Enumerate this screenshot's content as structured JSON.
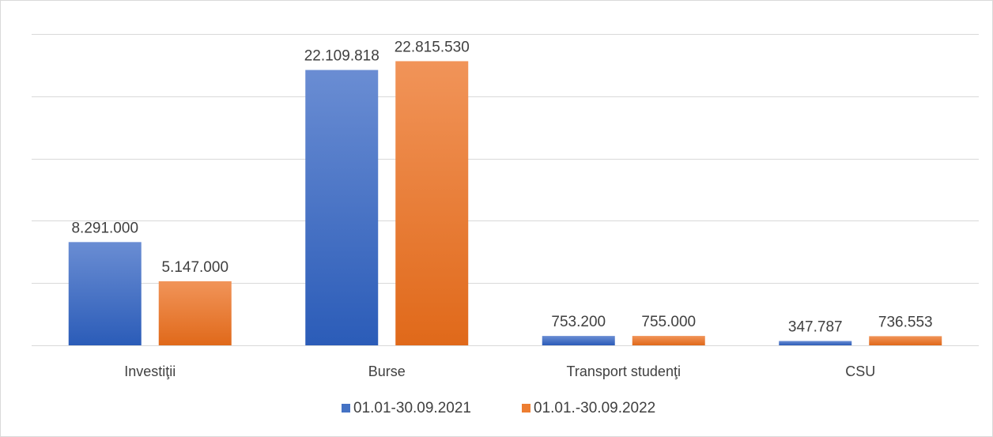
{
  "chart_data": {
    "type": "bar",
    "categories": [
      "Investiţii",
      "Burse",
      "Transport studenţi",
      "CSU"
    ],
    "series": [
      {
        "name": "01.01-30.09.2021",
        "values": [
          8291000,
          22109818,
          753200,
          347787
        ],
        "labels": [
          "8.291.000",
          "22.109.818",
          "753.200",
          "347.787"
        ],
        "color": "#4472c4"
      },
      {
        "name": "01.01.-30.09.2022",
        "values": [
          5147000,
          22815530,
          755000,
          736553
        ],
        "labels": [
          "5.147.000",
          "22.815.530",
          "755.000",
          "736.553"
        ],
        "color": "#ed7d31"
      }
    ],
    "ylim": [
      0,
      25000000
    ],
    "grid": true,
    "legend": "bottom",
    "title": "",
    "xlabel": "",
    "ylabel": ""
  }
}
